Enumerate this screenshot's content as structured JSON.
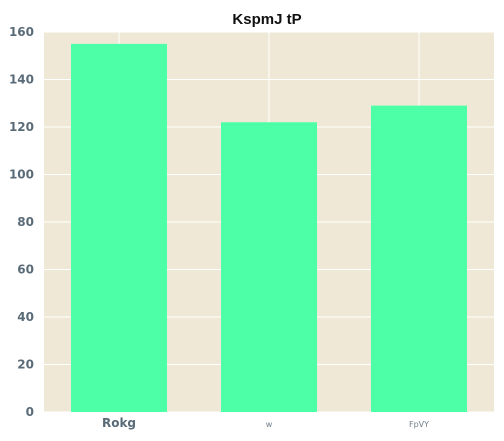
{
  "chart_data": {
    "type": "bar",
    "title": "KspmJ tP",
    "categories": [
      "Rokg",
      "w",
      "FpVY"
    ],
    "values": [
      155,
      122,
      129
    ],
    "ylim": [
      0,
      160
    ],
    "yticks": [
      0,
      20,
      40,
      60,
      80,
      100,
      120,
      140,
      160
    ],
    "xlabel": "",
    "ylabel": "",
    "grid": true,
    "colors": {
      "bar": "#4dffa6",
      "plot_background": "#efe8d6",
      "grid": "#ffffff"
    }
  }
}
